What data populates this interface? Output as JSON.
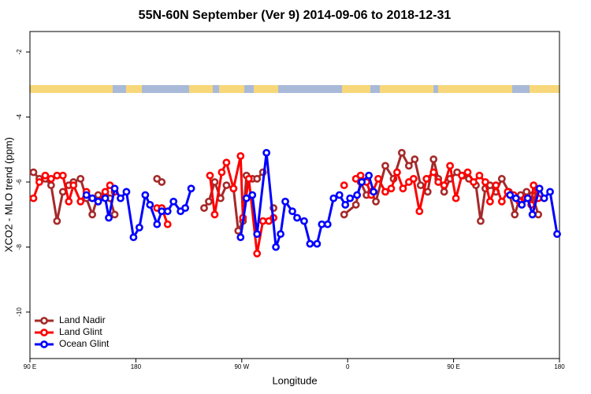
{
  "chart_data": {
    "type": "line",
    "title": "55N-60N September (Ver 9)   2014-09-06 to 2018-12-31",
    "x_label": "Longitude",
    "y_label": "XCO2 - MLO trend (ppm)",
    "xlim": [
      90,
      540
    ],
    "ylim": [
      -11.43,
      -1.37
    ],
    "xticks": [
      {
        "value": 90,
        "label": "90 E"
      },
      180,
      {
        "value": 270,
        "label": "90 W"
      },
      {
        "value": 360,
        "label": "0"
      },
      {
        "value": 450,
        "label": "90 E"
      },
      {
        "value": 540,
        "label": "180"
      }
    ],
    "yticks": [
      -2,
      -4,
      -6,
      -8,
      -10
    ],
    "legend": "bottom-left",
    "series": [
      {
        "name": "Land Nadir",
        "color": "#a52a2a",
        "x": [
          93,
          98,
          103,
          108,
          113,
          118,
          123,
          127,
          133,
          138,
          143,
          148,
          154,
          158,
          162,
          180,
          198,
          202,
          220,
          238,
          242,
          247,
          252,
          257,
          263,
          267,
          271,
          274,
          279,
          283,
          288,
          292,
          297,
          330,
          357,
          367,
          371,
          376,
          380,
          384,
          392,
          399,
          406,
          412,
          417,
          422,
          428,
          433,
          437,
          442,
          447,
          453,
          458,
          463,
          469,
          473,
          477,
          481,
          486,
          491,
          497,
          502,
          507,
          512,
          517,
          522
        ],
        "values": [
          -5.7,
          -5.9,
          -5.9,
          -6.1,
          -7.2,
          -6.3,
          -6.1,
          -6.0,
          -5.9,
          -6.5,
          -7.0,
          -6.4,
          -6.4,
          -6.5,
          -7.0,
          null,
          -5.9,
          -6.0,
          null,
          -6.8,
          -6.6,
          -6.0,
          -6.5,
          -6.1,
          -6.2,
          -7.5,
          -7.2,
          -5.8,
          -5.9,
          -5.9,
          -5.7,
          null,
          -6.8,
          null,
          -7.0,
          -6.7,
          -6.0,
          -6.4,
          -6.3,
          -6.6,
          -5.5,
          -5.9,
          -5.1,
          -5.5,
          -5.3,
          -6.1,
          -6.3,
          -5.3,
          -5.9,
          -6.3,
          -5.9,
          -5.7,
          -5.8,
          -5.9,
          -6.1,
          -7.2,
          -6.2,
          -6.1,
          -6.3,
          -5.9,
          -6.3,
          -7.0,
          -6.4,
          -6.3,
          -6.4,
          -7.0
        ]
      },
      {
        "name": "Land Glint",
        "color": "#ff0000",
        "x": [
          93,
          98,
          103,
          108,
          113,
          118,
          123,
          127,
          133,
          138,
          143,
          148,
          154,
          158,
          162,
          180,
          198,
          202,
          207,
          225,
          243,
          247,
          253,
          257,
          263,
          269,
          271,
          276,
          283,
          288,
          293,
          297,
          327,
          357,
          362,
          367,
          371,
          376,
          380,
          386,
          392,
          397,
          402,
          407,
          412,
          416,
          421,
          427,
          433,
          437,
          442,
          447,
          452,
          457,
          462,
          467,
          472,
          477,
          481,
          486,
          491,
          496,
          501,
          506,
          511,
          516,
          518,
          522
        ],
        "values": [
          -6.5,
          -6.0,
          -5.8,
          -5.9,
          -5.8,
          -5.8,
          -6.6,
          -6.1,
          -6.6,
          -6.3,
          -6.5,
          -6.6,
          -6.3,
          -6.1,
          -6.3,
          null,
          -6.8,
          -6.8,
          -7.3,
          null,
          -5.8,
          -7.0,
          -5.7,
          -5.4,
          -6.2,
          -5.2,
          -7.1,
          -5.9,
          -8.2,
          -7.2,
          -7.2,
          -7.1,
          null,
          -6.1,
          null,
          -5.9,
          -5.8,
          -6.0,
          -6.4,
          -5.9,
          -6.3,
          -6.2,
          -5.7,
          -6.2,
          -6.0,
          -5.9,
          -6.9,
          -5.9,
          -5.7,
          -6.0,
          -6.1,
          -5.5,
          -6.5,
          -5.8,
          -5.7,
          -6.0,
          -5.8,
          -6.0,
          -6.6,
          -6.1,
          -6.6,
          -6.3,
          -6.4,
          -6.6,
          -6.5,
          -6.7,
          -6.1,
          -6.5
        ]
      },
      {
        "name": "Ocean Glint",
        "color": "#0000ff",
        "x": [
          138,
          143,
          148,
          154,
          157,
          162,
          167,
          172,
          178,
          183,
          188,
          192,
          198,
          202,
          207,
          212,
          218,
          222,
          227,
          248,
          269,
          274,
          279,
          283,
          291,
          299,
          303,
          307,
          313,
          317,
          323,
          328,
          334,
          338,
          343,
          348,
          353,
          358,
          362,
          368,
          372,
          378,
          382,
          440,
          498,
          503,
          508,
          513,
          517,
          523,
          527,
          532,
          538
        ],
        "values": [
          -6.4,
          -6.5,
          -6.6,
          -6.5,
          -7.1,
          -6.2,
          -6.5,
          -6.3,
          -7.7,
          -7.4,
          -6.4,
          -6.7,
          -7.3,
          -6.9,
          -6.9,
          -6.6,
          -6.9,
          -6.8,
          -6.2,
          null,
          -7.7,
          -6.5,
          -6.4,
          -7.6,
          -5.1,
          -8.0,
          -7.6,
          -6.6,
          -6.9,
          -7.1,
          -7.2,
          -7.9,
          -7.9,
          -7.3,
          -7.3,
          -6.5,
          -6.4,
          -6.7,
          -6.5,
          -6.4,
          -6.0,
          -5.8,
          -6.3,
          null,
          -6.4,
          -6.5,
          -6.7,
          -6.5,
          -7.0,
          -6.2,
          -6.5,
          -6.3,
          -7.6
        ]
      }
    ]
  }
}
